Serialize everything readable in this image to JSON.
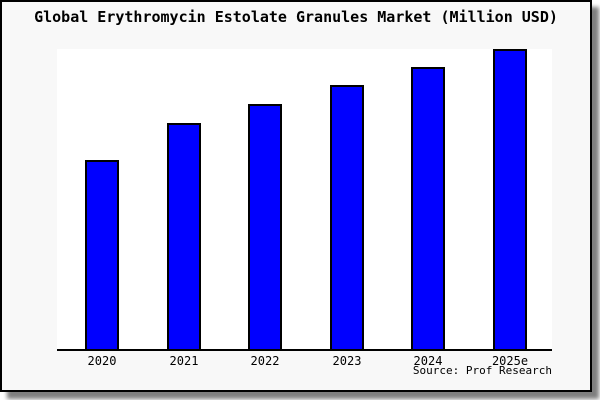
{
  "colors": {
    "bar_fill": "#0000ff",
    "bar_border": "#000000",
    "frame_bg": "#f8f8f8",
    "plot_bg": "#ffffff",
    "frame_border": "#000000",
    "axis_color": "#000000"
  },
  "chart_data": {
    "type": "bar",
    "title": "Global Erythromycin Estolate Granules Market (Million USD)",
    "categories": [
      "2020",
      "2021",
      "2022",
      "2023",
      "2024",
      "2025e"
    ],
    "values": [
      63,
      75.3,
      81.7,
      88,
      94,
      100
    ],
    "value_unit": "relative height (y-axis unlabeled; 2025e bar = 100)",
    "xlabel": "",
    "ylabel": "",
    "ylim": [
      0,
      100
    ],
    "grid": false,
    "legend": false,
    "source": "Source: Prof Research"
  }
}
